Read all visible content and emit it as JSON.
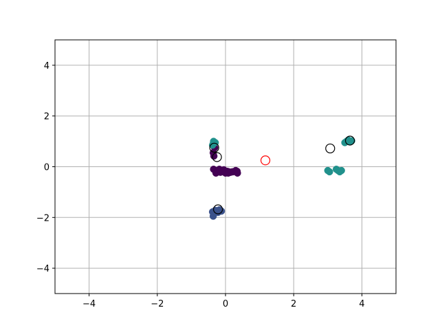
{
  "chart_data": {
    "type": "scatter",
    "xlim": [
      -5,
      5
    ],
    "ylim": [
      -5,
      5
    ],
    "grid": true,
    "x_ticks": [
      -4,
      -2,
      0,
      2,
      4
    ],
    "y_ticks": [
      -4,
      -2,
      0,
      2,
      4
    ],
    "x_tick_labels": [
      "−4",
      "−2",
      "0",
      "2",
      "4"
    ],
    "y_tick_labels": [
      "−4",
      "−2",
      "0",
      "2",
      "4"
    ],
    "series": [
      {
        "color": "#440154",
        "marker": "filled-circle",
        "x": [
          -0.36,
          -0.32,
          -0.36,
          -0.34,
          -0.35,
          -0.3,
          -0.25,
          -0.2,
          -0.15,
          -0.1,
          -0.05,
          0.0,
          0.05,
          0.1,
          0.15,
          0.2,
          0.3,
          0.35,
          -0.28,
          -0.18,
          -0.05,
          0.08,
          0.22,
          0.34
        ],
        "y": [
          0.9,
          0.75,
          0.55,
          0.42,
          -0.1,
          -0.15,
          -0.2,
          -0.18,
          -0.22,
          -0.15,
          -0.2,
          -0.25,
          -0.18,
          -0.2,
          -0.22,
          -0.2,
          -0.15,
          -0.25,
          -0.25,
          -0.1,
          -0.12,
          -0.25,
          -0.2,
          -0.18
        ]
      },
      {
        "color": "#3b528b",
        "marker": "filled-circle",
        "x": [
          -0.38,
          -0.36,
          -0.3,
          -0.22,
          -0.12,
          -0.18,
          -0.35
        ],
        "y": [
          -1.78,
          -1.95,
          -1.72,
          -1.8,
          -1.75,
          -1.7,
          -1.85
        ]
      },
      {
        "color": "#21918c",
        "marker": "filled-circle",
        "x": [
          -0.35,
          -0.3,
          -0.38,
          3.0,
          3.05,
          3.25,
          3.3,
          3.35,
          3.4,
          3.5,
          3.55,
          3.6,
          3.65,
          3.7
        ],
        "y": [
          1.0,
          0.95,
          0.85,
          -0.15,
          -0.2,
          -0.1,
          -0.15,
          -0.2,
          -0.15,
          0.95,
          1.0,
          1.05,
          1.0,
          1.02
        ]
      },
      {
        "color": "#000000",
        "marker": "open-circle",
        "x": [
          -0.33,
          -0.25,
          -0.22,
          3.07,
          3.65
        ],
        "y": [
          0.75,
          0.38,
          -1.68,
          0.72,
          1.03
        ]
      },
      {
        "color": "#ff0000",
        "marker": "open-circle",
        "x": [
          1.17
        ],
        "y": [
          0.25
        ]
      }
    ]
  }
}
